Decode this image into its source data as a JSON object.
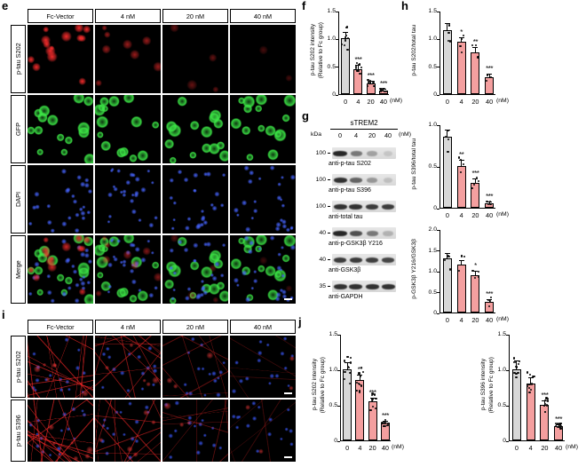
{
  "panels": {
    "e": "e",
    "f": "f",
    "g": "g",
    "h": "h",
    "i": "i",
    "j": "j"
  },
  "colors": {
    "control_bar": "#d8d8d8",
    "treated_bar": "#f49f9f",
    "red_channel": "#ff2d2d",
    "green_channel": "#3ce646",
    "blue_channel": "#465aff"
  },
  "panel_e": {
    "col_headers": [
      "Fc-Vector",
      "4 nM",
      "20 nM",
      "40 nM"
    ],
    "row_labels": [
      "p-tau S202",
      "GFP",
      "DAPI",
      "Merge"
    ]
  },
  "panel_i": {
    "col_headers": [
      "Fc-Vector",
      "4 nM",
      "20 nM",
      "40 nM"
    ],
    "row_labels": [
      "p-tau S202",
      "p-tau S396"
    ]
  },
  "western_blot": {
    "title": "sTREM2",
    "kda_label": "kDa",
    "doses": [
      "0",
      "4",
      "20",
      "40"
    ],
    "unit": "(nM)",
    "rows": [
      {
        "kda": "100",
        "label": "anti-p-tau S202",
        "bands": [
          0.9,
          0.5,
          0.3,
          0.12
        ]
      },
      {
        "kda": "100",
        "label": "anti-p-tau S396",
        "bands": [
          0.85,
          0.6,
          0.35,
          0.15
        ]
      },
      {
        "kda": "100",
        "label": "anti-total tau",
        "bands": [
          0.85,
          0.85,
          0.8,
          0.8
        ]
      },
      {
        "kda": "40",
        "label": "anti-p-GSK3β Y216",
        "bands": [
          0.9,
          0.7,
          0.5,
          0.22
        ]
      },
      {
        "kda": "40",
        "label": "anti-GSK3β",
        "bands": [
          0.8,
          0.8,
          0.78,
          0.75
        ]
      },
      {
        "kda": "35",
        "label": "anti-GAPDH",
        "bands": [
          0.85,
          0.85,
          0.85,
          0.85
        ]
      }
    ]
  },
  "chart_data": [
    {
      "id": "f",
      "type": "bar",
      "categories": [
        "0",
        "4",
        "20",
        "40"
      ],
      "values": [
        1.0,
        0.45,
        0.2,
        0.07
      ],
      "errors": [
        0.12,
        0.07,
        0.04,
        0.02
      ],
      "sig": [
        "",
        "***",
        "***",
        "***"
      ],
      "ylabel_lines": [
        "p-tau S202 intensity",
        "(Relative to Fc group)"
      ],
      "ylim": [
        0,
        1.5
      ],
      "yticks": [
        0,
        0.5,
        1.0,
        1.5
      ],
      "x_unit": "(nM)",
      "n_points": 10
    },
    {
      "id": "h1",
      "type": "bar",
      "categories": [
        "0",
        "4",
        "20",
        "40"
      ],
      "values": [
        1.15,
        0.95,
        0.75,
        0.3
      ],
      "errors": [
        0.12,
        0.08,
        0.09,
        0.06
      ],
      "sig": [
        "",
        "*",
        "**",
        "***"
      ],
      "ylabel_lines": [
        "p-tau S202/total tau"
      ],
      "ylim": [
        0,
        1.5
      ],
      "yticks": [
        0,
        0.5,
        1.0,
        1.5
      ],
      "x_unit": "(nM)",
      "n_points": 4
    },
    {
      "id": "h2",
      "type": "bar",
      "categories": [
        "0",
        "4",
        "20",
        "40"
      ],
      "values": [
        0.85,
        0.5,
        0.3,
        0.05
      ],
      "errors": [
        0.09,
        0.07,
        0.05,
        0.02
      ],
      "sig": [
        "",
        "**",
        "***",
        "***"
      ],
      "ylabel_lines": [
        "p-tau S396/total tau"
      ],
      "ylim": [
        0,
        1.0
      ],
      "yticks": [
        0,
        0.5,
        1.0
      ],
      "x_unit": "(nM)",
      "n_points": 4
    },
    {
      "id": "h3",
      "type": "bar",
      "categories": [
        "0",
        "4",
        "20",
        "40"
      ],
      "values": [
        1.3,
        1.15,
        0.9,
        0.25
      ],
      "errors": [
        0.12,
        0.1,
        0.1,
        0.07
      ],
      "sig": [
        "",
        "",
        "*",
        "***"
      ],
      "ylabel_lines": [
        "p-GSK3β Y216/GSK3β"
      ],
      "ylim": [
        0,
        2.0
      ],
      "yticks": [
        0,
        0.5,
        1.0,
        1.5,
        2.0
      ],
      "x_unit": "(nM)",
      "n_points": 4
    },
    {
      "id": "j1",
      "type": "bar",
      "categories": [
        "0",
        "4",
        "20",
        "40"
      ],
      "values": [
        1.0,
        0.85,
        0.55,
        0.25
      ],
      "errors": [
        0.1,
        0.07,
        0.05,
        0.03
      ],
      "sig": [
        "",
        "**",
        "***",
        "***"
      ],
      "ylabel_lines": [
        "p-tau S202 intensity",
        "(Relative to Fc group)"
      ],
      "ylim": [
        0,
        1.5
      ],
      "yticks": [
        0,
        0.5,
        1.0,
        1.5
      ],
      "x_unit": "(nM)",
      "n_points": 11
    },
    {
      "id": "j2",
      "type": "bar",
      "categories": [
        "0",
        "4",
        "20",
        "40"
      ],
      "values": [
        1.0,
        0.8,
        0.5,
        0.2
      ],
      "errors": [
        0.12,
        0.09,
        0.06,
        0.03
      ],
      "sig": [
        "",
        "",
        "***",
        "***"
      ],
      "ylabel_lines": [
        "p-tau S396 intensity",
        "(Relative to Fc group)"
      ],
      "ylim": [
        0,
        1.5
      ],
      "yticks": [
        0,
        0.5,
        1.0,
        1.5
      ],
      "x_unit": "(nM)",
      "n_points": 11
    }
  ]
}
